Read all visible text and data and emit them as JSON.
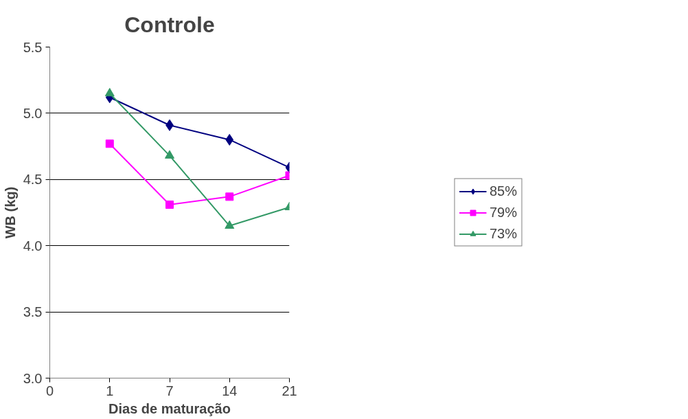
{
  "chart_data": {
    "type": "line",
    "title": "Controle",
    "xlabel": "Dias de maturação",
    "ylabel": "WB (kg)",
    "categories": [
      "0",
      "1",
      "7",
      "14",
      "21"
    ],
    "series": [
      {
        "name": "85%",
        "color": "#000080",
        "marker": "diamond",
        "values": [
          null,
          5.12,
          4.91,
          4.8,
          4.59
        ]
      },
      {
        "name": "79%",
        "color": "#ff00ff",
        "marker": "square",
        "values": [
          null,
          4.77,
          4.31,
          4.37,
          4.53
        ]
      },
      {
        "name": "73%",
        "color": "#339966",
        "marker": "triangle",
        "values": [
          null,
          5.15,
          4.68,
          4.15,
          4.29
        ]
      }
    ],
    "ylim": [
      3.0,
      5.5
    ],
    "yticks": [
      {
        "value": 3.0,
        "label": "3.0"
      },
      {
        "value": 3.5,
        "label": "3.5"
      },
      {
        "value": 4.0,
        "label": "4.0"
      },
      {
        "value": 4.5,
        "label": "4.5"
      },
      {
        "value": 5.0,
        "label": "5.0"
      },
      {
        "value": 5.5,
        "label": "5.5"
      }
    ],
    "grid": "y",
    "legend": "right",
    "line_style": "solid"
  }
}
